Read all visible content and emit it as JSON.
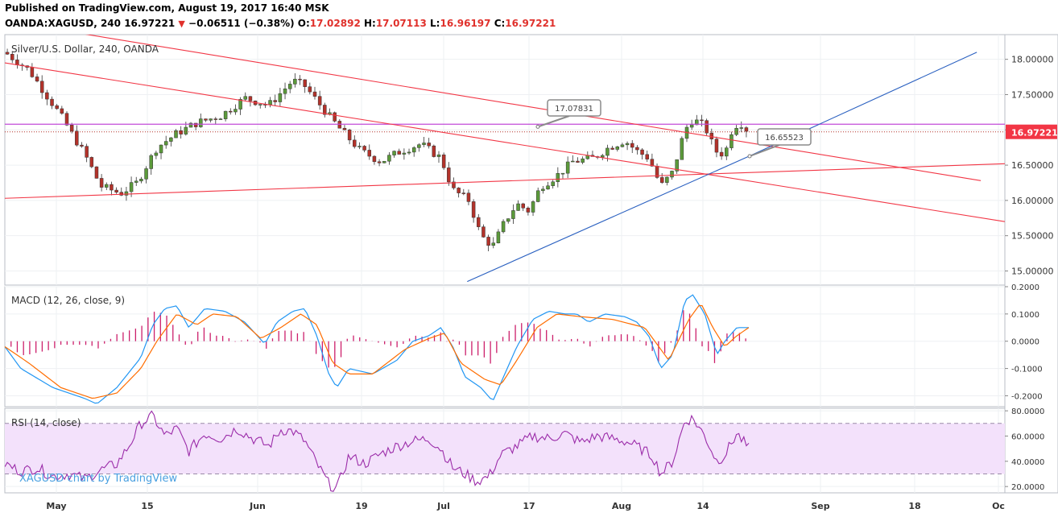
{
  "header": {
    "published": "Published on TradingView.com, August 19, 2017 16:40 MSK",
    "symbol": "OANDA:XAGUSD, 240",
    "price": "16.97221",
    "change": "−0.06511 (−0.38%)",
    "o_label": "O:",
    "o_value": "17.02892",
    "h_label": "H:",
    "h_value": "17.07113",
    "l_label": "L:",
    "l_value": "16.96197",
    "c_label": "C:",
    "c_value": "16.97221"
  },
  "colors": {
    "up_candle": "#5b9a3a",
    "down_candle": "#b3322a",
    "trend_red": "#f23645",
    "trend_blue": "#2a60c0",
    "horizontal": "#c24bd8",
    "macd_line": "#2196f3",
    "signal_line": "#ff6d00",
    "histogram": "#cc1f6b",
    "rsi_line": "#9b2ca9",
    "rsi_band": "#f3e1fb"
  },
  "chart_data": [
    {
      "type": "candlestick",
      "title": "Silver/U.S. Dollar, 240, OANDA",
      "ylim": [
        14.8,
        18.35
      ],
      "yticks": [
        "18.00000",
        "17.50000",
        "17.00000",
        "16.50000",
        "16.00000",
        "15.50000",
        "15.00000"
      ],
      "ytick_values": [
        18.0,
        17.5,
        17.0,
        16.5,
        16.0,
        15.5,
        15.0
      ],
      "xticks": [
        "May",
        "15",
        "Jun",
        "19",
        "Jul",
        "17",
        "Aug",
        "14",
        "Sep",
        "18",
        "Oc"
      ],
      "last_price_label": "16.97221",
      "last_price": 16.97221,
      "annotations": [
        {
          "label": "17.07831",
          "value": 17.07831
        },
        {
          "label": "16.65523",
          "value": 16.65523
        }
      ],
      "anchors": [
        {
          "t": 0,
          "p": 18.1
        },
        {
          "t": 0.03,
          "p": 17.85
        },
        {
          "t": 0.07,
          "p": 17.2
        },
        {
          "t": 0.1,
          "p": 16.65
        },
        {
          "t": 0.12,
          "p": 16.2
        },
        {
          "t": 0.145,
          "p": 16.1
        },
        {
          "t": 0.165,
          "p": 16.25
        },
        {
          "t": 0.19,
          "p": 16.75
        },
        {
          "t": 0.215,
          "p": 16.95
        },
        {
          "t": 0.24,
          "p": 17.1
        },
        {
          "t": 0.27,
          "p": 17.2
        },
        {
          "t": 0.3,
          "p": 17.45
        },
        {
          "t": 0.33,
          "p": 17.35
        },
        {
          "t": 0.36,
          "p": 17.7
        },
        {
          "t": 0.375,
          "p": 17.62
        },
        {
          "t": 0.405,
          "p": 17.2
        },
        {
          "t": 0.42,
          "p": 17.0
        },
        {
          "t": 0.445,
          "p": 16.7
        },
        {
          "t": 0.47,
          "p": 16.55
        },
        {
          "t": 0.495,
          "p": 16.7
        },
        {
          "t": 0.52,
          "p": 16.8
        },
        {
          "t": 0.545,
          "p": 16.6
        },
        {
          "t": 0.56,
          "p": 16.15
        },
        {
          "t": 0.58,
          "p": 16.0
        },
        {
          "t": 0.595,
          "p": 15.5
        },
        {
          "t": 0.61,
          "p": 15.35
        },
        {
          "t": 0.625,
          "p": 15.7
        },
        {
          "t": 0.64,
          "p": 15.95
        },
        {
          "t": 0.655,
          "p": 15.85
        },
        {
          "t": 0.67,
          "p": 16.2
        },
        {
          "t": 0.69,
          "p": 16.35
        },
        {
          "t": 0.71,
          "p": 16.55
        },
        {
          "t": 0.735,
          "p": 16.6
        },
        {
          "t": 0.755,
          "p": 16.75
        },
        {
          "t": 0.775,
          "p": 16.85
        },
        {
          "t": 0.79,
          "p": 16.7
        },
        {
          "t": 0.805,
          "p": 16.6
        },
        {
          "t": 0.82,
          "p": 16.2
        },
        {
          "t": 0.835,
          "p": 16.4
        },
        {
          "t": 0.85,
          "p": 17.0
        },
        {
          "t": 0.86,
          "p": 17.15
        },
        {
          "t": 0.875,
          "p": 17.05
        },
        {
          "t": 0.888,
          "p": 16.7
        },
        {
          "t": 0.9,
          "p": 16.65
        },
        {
          "t": 0.91,
          "p": 17.05
        },
        {
          "t": 0.92,
          "p": 17.1
        },
        {
          "t": 0.93,
          "p": 16.97
        }
      ],
      "trendlines_red": [
        {
          "from": {
            "t": 0.0,
            "p": 17.95
          },
          "to": {
            "t": 1.25,
            "p": 15.7
          }
        },
        {
          "from": {
            "t": 0.05,
            "p": 18.45
          },
          "to": {
            "t": 1.22,
            "p": 16.28
          }
        },
        {
          "from": {
            "t": 0.0,
            "p": 16.03
          },
          "to": {
            "t": 1.25,
            "p": 16.52
          }
        }
      ],
      "trendlines_blue": [
        {
          "from": {
            "t": 0.578,
            "p": 14.85
          },
          "to": {
            "t": 0.935,
            "p": 16.65
          }
        },
        {
          "from": {
            "t": 0.935,
            "p": 16.65
          },
          "to": {
            "t": 1.215,
            "p": 18.1
          }
        }
      ],
      "horizontal_line": 17.08
    },
    {
      "type": "line",
      "title": "MACD (12, 26, close, 9)",
      "ylim": [
        -0.24,
        0.2
      ],
      "yticks": [
        "0.2000",
        "0.1000",
        "0.0000",
        "-0.1000",
        "-0.2000"
      ],
      "ytick_values": [
        0.2,
        0.1,
        0.0,
        -0.1,
        -0.2
      ],
      "series": [
        {
          "name": "MACD",
          "anchors": [
            {
              "t": 0,
              "p": -0.02
            },
            {
              "t": 0.02,
              "p": -0.1
            },
            {
              "t": 0.06,
              "p": -0.17
            },
            {
              "t": 0.1,
              "p": -0.21
            },
            {
              "t": 0.115,
              "p": -0.23
            },
            {
              "t": 0.14,
              "p": -0.17
            },
            {
              "t": 0.17,
              "p": -0.06
            },
            {
              "t": 0.185,
              "p": 0.06
            },
            {
              "t": 0.2,
              "p": 0.12
            },
            {
              "t": 0.215,
              "p": 0.13
            },
            {
              "t": 0.23,
              "p": 0.05
            },
            {
              "t": 0.25,
              "p": 0.12
            },
            {
              "t": 0.275,
              "p": 0.11
            },
            {
              "t": 0.3,
              "p": 0.07
            },
            {
              "t": 0.325,
              "p": -0.01
            },
            {
              "t": 0.34,
              "p": 0.07
            },
            {
              "t": 0.36,
              "p": 0.11
            },
            {
              "t": 0.375,
              "p": 0.12
            },
            {
              "t": 0.39,
              "p": 0.02
            },
            {
              "t": 0.405,
              "p": -0.12
            },
            {
              "t": 0.415,
              "p": -0.17
            },
            {
              "t": 0.43,
              "p": -0.1
            },
            {
              "t": 0.46,
              "p": -0.12
            },
            {
              "t": 0.49,
              "p": -0.07
            },
            {
              "t": 0.51,
              "p": 0.0
            },
            {
              "t": 0.53,
              "p": 0.02
            },
            {
              "t": 0.545,
              "p": 0.05
            },
            {
              "t": 0.56,
              "p": -0.02
            },
            {
              "t": 0.575,
              "p": -0.13
            },
            {
              "t": 0.595,
              "p": -0.17
            },
            {
              "t": 0.61,
              "p": -0.22
            },
            {
              "t": 0.625,
              "p": -0.12
            },
            {
              "t": 0.64,
              "p": -0.02
            },
            {
              "t": 0.66,
              "p": 0.08
            },
            {
              "t": 0.68,
              "p": 0.11
            },
            {
              "t": 0.7,
              "p": 0.1
            },
            {
              "t": 0.715,
              "p": 0.1
            },
            {
              "t": 0.73,
              "p": 0.07
            },
            {
              "t": 0.75,
              "p": 0.1
            },
            {
              "t": 0.775,
              "p": 0.09
            },
            {
              "t": 0.79,
              "p": 0.07
            },
            {
              "t": 0.805,
              "p": 0.02
            },
            {
              "t": 0.82,
              "p": -0.1
            },
            {
              "t": 0.835,
              "p": -0.05
            },
            {
              "t": 0.85,
              "p": 0.15
            },
            {
              "t": 0.86,
              "p": 0.17
            },
            {
              "t": 0.875,
              "p": 0.1
            },
            {
              "t": 0.89,
              "p": -0.05
            },
            {
              "t": 0.9,
              "p": 0.0
            },
            {
              "t": 0.915,
              "p": 0.05
            },
            {
              "t": 0.93,
              "p": 0.05
            }
          ]
        },
        {
          "name": "Signal",
          "anchors": [
            {
              "t": 0,
              "p": -0.02
            },
            {
              "t": 0.03,
              "p": -0.08
            },
            {
              "t": 0.07,
              "p": -0.17
            },
            {
              "t": 0.11,
              "p": -0.21
            },
            {
              "t": 0.14,
              "p": -0.19
            },
            {
              "t": 0.17,
              "p": -0.1
            },
            {
              "t": 0.19,
              "p": 0.0
            },
            {
              "t": 0.215,
              "p": 0.1
            },
            {
              "t": 0.24,
              "p": 0.06
            },
            {
              "t": 0.26,
              "p": 0.1
            },
            {
              "t": 0.29,
              "p": 0.09
            },
            {
              "t": 0.32,
              "p": 0.01
            },
            {
              "t": 0.345,
              "p": 0.05
            },
            {
              "t": 0.37,
              "p": 0.1
            },
            {
              "t": 0.39,
              "p": 0.06
            },
            {
              "t": 0.41,
              "p": -0.08
            },
            {
              "t": 0.43,
              "p": -0.12
            },
            {
              "t": 0.46,
              "p": -0.12
            },
            {
              "t": 0.5,
              "p": -0.03
            },
            {
              "t": 0.53,
              "p": 0.01
            },
            {
              "t": 0.55,
              "p": 0.03
            },
            {
              "t": 0.57,
              "p": -0.08
            },
            {
              "t": 0.6,
              "p": -0.14
            },
            {
              "t": 0.62,
              "p": -0.16
            },
            {
              "t": 0.64,
              "p": -0.07
            },
            {
              "t": 0.665,
              "p": 0.05
            },
            {
              "t": 0.69,
              "p": 0.1
            },
            {
              "t": 0.72,
              "p": 0.09
            },
            {
              "t": 0.76,
              "p": 0.08
            },
            {
              "t": 0.8,
              "p": 0.05
            },
            {
              "t": 0.83,
              "p": -0.07
            },
            {
              "t": 0.855,
              "p": 0.08
            },
            {
              "t": 0.87,
              "p": 0.14
            },
            {
              "t": 0.885,
              "p": 0.05
            },
            {
              "t": 0.9,
              "p": -0.02
            },
            {
              "t": 0.915,
              "p": 0.02
            },
            {
              "t": 0.93,
              "p": 0.05
            }
          ]
        }
      ]
    },
    {
      "type": "line",
      "title": "RSI (14, close)",
      "ylim": [
        15,
        82
      ],
      "yticks": [
        "80.0000",
        "60.0000",
        "40.0000",
        "20.0000"
      ],
      "ytick_values": [
        80,
        60,
        40,
        20
      ],
      "band": [
        30,
        70
      ],
      "series": [
        {
          "name": "RSI",
          "anchors": [
            {
              "t": 0,
              "p": 38
            },
            {
              "t": 0.02,
              "p": 32
            },
            {
              "t": 0.04,
              "p": 35
            },
            {
              "t": 0.06,
              "p": 28
            },
            {
              "t": 0.08,
              "p": 30
            },
            {
              "t": 0.1,
              "p": 26
            },
            {
              "t": 0.12,
              "p": 33
            },
            {
              "t": 0.14,
              "p": 38
            },
            {
              "t": 0.155,
              "p": 52
            },
            {
              "t": 0.17,
              "p": 70
            },
            {
              "t": 0.185,
              "p": 76
            },
            {
              "t": 0.2,
              "p": 60
            },
            {
              "t": 0.215,
              "p": 66
            },
            {
              "t": 0.23,
              "p": 48
            },
            {
              "t": 0.25,
              "p": 62
            },
            {
              "t": 0.27,
              "p": 58
            },
            {
              "t": 0.29,
              "p": 66
            },
            {
              "t": 0.31,
              "p": 58
            },
            {
              "t": 0.33,
              "p": 52
            },
            {
              "t": 0.345,
              "p": 65
            },
            {
              "t": 0.36,
              "p": 64
            },
            {
              "t": 0.375,
              "p": 56
            },
            {
              "t": 0.39,
              "p": 38
            },
            {
              "t": 0.405,
              "p": 22
            },
            {
              "t": 0.415,
              "p": 18
            },
            {
              "t": 0.43,
              "p": 44
            },
            {
              "t": 0.45,
              "p": 38
            },
            {
              "t": 0.47,
              "p": 46
            },
            {
              "t": 0.49,
              "p": 52
            },
            {
              "t": 0.51,
              "p": 56
            },
            {
              "t": 0.53,
              "p": 58
            },
            {
              "t": 0.545,
              "p": 50
            },
            {
              "t": 0.56,
              "p": 35
            },
            {
              "t": 0.575,
              "p": 30
            },
            {
              "t": 0.59,
              "p": 24
            },
            {
              "t": 0.605,
              "p": 28
            },
            {
              "t": 0.62,
              "p": 45
            },
            {
              "t": 0.64,
              "p": 52
            },
            {
              "t": 0.66,
              "p": 60
            },
            {
              "t": 0.68,
              "p": 58
            },
            {
              "t": 0.7,
              "p": 62
            },
            {
              "t": 0.72,
              "p": 55
            },
            {
              "t": 0.74,
              "p": 60
            },
            {
              "t": 0.76,
              "p": 58
            },
            {
              "t": 0.78,
              "p": 55
            },
            {
              "t": 0.795,
              "p": 50
            },
            {
              "t": 0.81,
              "p": 44
            },
            {
              "t": 0.82,
              "p": 30
            },
            {
              "t": 0.835,
              "p": 40
            },
            {
              "t": 0.85,
              "p": 72
            },
            {
              "t": 0.86,
              "p": 74
            },
            {
              "t": 0.875,
              "p": 60
            },
            {
              "t": 0.89,
              "p": 40
            },
            {
              "t": 0.9,
              "p": 45
            },
            {
              "t": 0.915,
              "p": 62
            },
            {
              "t": 0.93,
              "p": 50
            }
          ]
        }
      ]
    }
  ],
  "watermark": "XAGUSD chart by TradingView"
}
